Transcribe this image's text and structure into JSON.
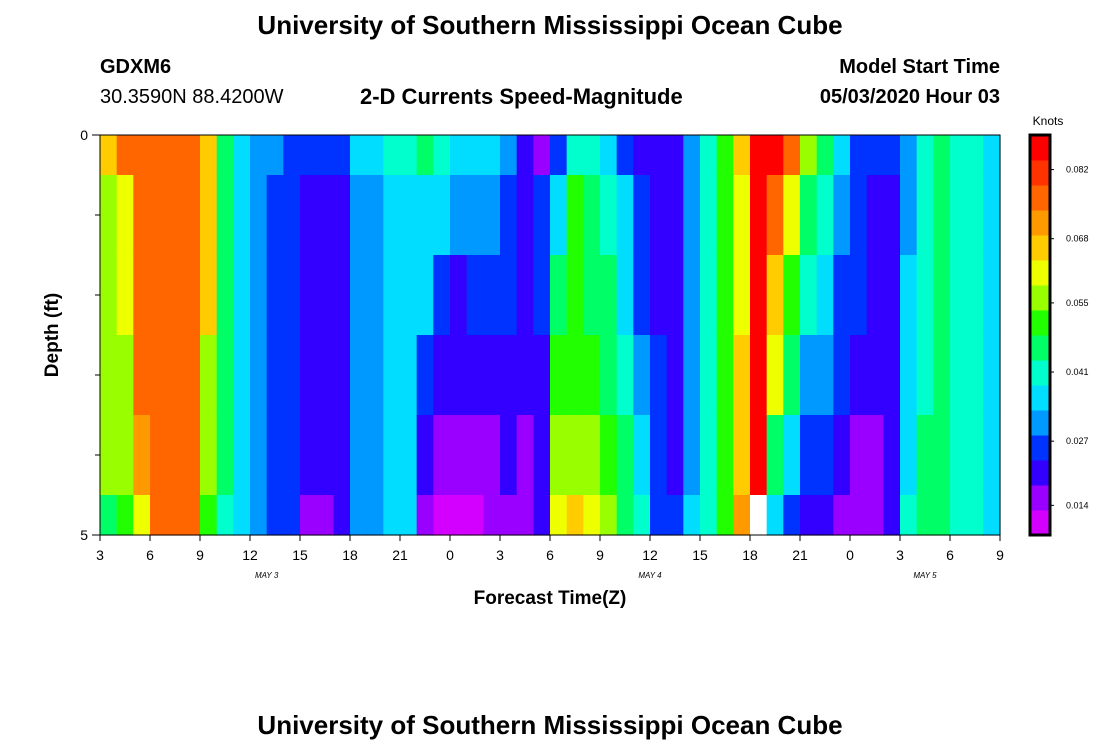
{
  "header": {
    "title": "University of Southern Mississippi Ocean Cube",
    "station_id": "GDXM6",
    "station_coords": "30.3590N 88.4200W",
    "chart_subtitle": "2-D Currents Speed-Magnitude",
    "model_start_label": "Model Start Time",
    "model_start_value": "05/03/2020 Hour 03"
  },
  "footer": {
    "title": "University of Southern Mississippi Ocean Cube"
  },
  "colors": {
    "palette": [
      "#d400ff",
      "#9900ff",
      "#3300ff",
      "#0033ff",
      "#0099ff",
      "#00ddff",
      "#00ffcc",
      "#00ff66",
      "#22ff00",
      "#99ff00",
      "#eeff00",
      "#ffcc00",
      "#ff9900",
      "#ff6600",
      "#ff3300",
      "#ff0000"
    ],
    "missing": "#ffffff"
  },
  "chart_data": {
    "type": "heatmap",
    "title": "2-D Currents Speed-Magnitude",
    "xlabel": "Forecast Time(Z)",
    "ylabel": "Depth (ft)",
    "x_tick_labels": [
      "3",
      "6",
      "9",
      "12",
      "15",
      "18",
      "21",
      "0",
      "3",
      "6",
      "9",
      "12",
      "15",
      "18",
      "21",
      "0",
      "3",
      "6",
      "9"
    ],
    "date_labels": [
      {
        "label": "MAY 3",
        "hour_offset": 10
      },
      {
        "label": "MAY 4",
        "hour_offset": 33
      },
      {
        "label": "MAY 5",
        "hour_offset": 49.5
      }
    ],
    "x_range_hours": [
      0,
      54
    ],
    "y_tick_labels": [
      "0",
      "5"
    ],
    "ylim": [
      0,
      5
    ],
    "colorbar": {
      "unit": "Knots",
      "ticks": [
        0.014,
        0.027,
        0.041,
        0.055,
        0.068,
        0.082
      ],
      "range": [
        0.008,
        0.089
      ]
    },
    "row_boundaries_ft": [
      0,
      0.5,
      1.5,
      2.5,
      3.5,
      4.5,
      5
    ],
    "columns": [
      {
        "hour": 0,
        "v": [
          0.068,
          0.055,
          0.055,
          0.055,
          0.055,
          0.048
        ]
      },
      {
        "hour": 1,
        "v": [
          0.075,
          0.062,
          0.062,
          0.058,
          0.055,
          0.052
        ]
      },
      {
        "hour": 2,
        "v": [
          0.078,
          0.075,
          0.075,
          0.075,
          0.072,
          0.062
        ]
      },
      {
        "hour": 3,
        "v": [
          0.078,
          0.078,
          0.078,
          0.078,
          0.078,
          0.075
        ]
      },
      {
        "hour": 4,
        "v": [
          0.078,
          0.078,
          0.078,
          0.078,
          0.078,
          0.078
        ]
      },
      {
        "hour": 5,
        "v": [
          0.075,
          0.078,
          0.078,
          0.078,
          0.078,
          0.078
        ]
      },
      {
        "hour": 6,
        "v": [
          0.065,
          0.065,
          0.065,
          0.055,
          0.055,
          0.052
        ]
      },
      {
        "hour": 7,
        "v": [
          0.048,
          0.045,
          0.045,
          0.045,
          0.045,
          0.042
        ]
      },
      {
        "hour": 8,
        "v": [
          0.038,
          0.036,
          0.036,
          0.036,
          0.038,
          0.036
        ]
      },
      {
        "hour": 9,
        "v": [
          0.033,
          0.032,
          0.032,
          0.032,
          0.032,
          0.032
        ]
      },
      {
        "hour": 10,
        "v": [
          0.03,
          0.028,
          0.028,
          0.028,
          0.028,
          0.026
        ]
      },
      {
        "hour": 11,
        "v": [
          0.026,
          0.025,
          0.025,
          0.025,
          0.025,
          0.024
        ]
      },
      {
        "hour": 12,
        "v": [
          0.024,
          0.021,
          0.021,
          0.021,
          0.019,
          0.016
        ]
      },
      {
        "hour": 13,
        "v": [
          0.024,
          0.021,
          0.021,
          0.021,
          0.019,
          0.016
        ]
      },
      {
        "hour": 14,
        "v": [
          0.026,
          0.022,
          0.022,
          0.022,
          0.022,
          0.022
        ]
      },
      {
        "hour": 15,
        "v": [
          0.034,
          0.03,
          0.03,
          0.03,
          0.03,
          0.03
        ]
      },
      {
        "hour": 16,
        "v": [
          0.038,
          0.033,
          0.033,
          0.033,
          0.033,
          0.033
        ]
      },
      {
        "hour": 17,
        "v": [
          0.04,
          0.036,
          0.036,
          0.036,
          0.036,
          0.036
        ]
      },
      {
        "hour": 18,
        "v": [
          0.042,
          0.038,
          0.038,
          0.038,
          0.038,
          0.036
        ]
      },
      {
        "hour": 19,
        "v": [
          0.044,
          0.038,
          0.038,
          0.024,
          0.019,
          0.015
        ]
      },
      {
        "hour": 20,
        "v": [
          0.042,
          0.034,
          0.025,
          0.022,
          0.018,
          0.013
        ]
      },
      {
        "hour": 21,
        "v": [
          0.038,
          0.031,
          0.023,
          0.021,
          0.017,
          0.012
        ]
      },
      {
        "hour": 22,
        "v": [
          0.036,
          0.031,
          0.024,
          0.021,
          0.018,
          0.013
        ]
      },
      {
        "hour": 23,
        "v": [
          0.038,
          0.031,
          0.025,
          0.022,
          0.018,
          0.014
        ]
      },
      {
        "hour": 24,
        "v": [
          0.03,
          0.027,
          0.026,
          0.022,
          0.02,
          0.014
        ]
      },
      {
        "hour": 25,
        "v": [
          0.022,
          0.022,
          0.022,
          0.021,
          0.017,
          0.015
        ]
      },
      {
        "hour": 26,
        "v": [
          0.018,
          0.024,
          0.024,
          0.022,
          0.02,
          0.022
        ]
      },
      {
        "hour": 27,
        "v": [
          0.026,
          0.037,
          0.047,
          0.049,
          0.055,
          0.062
        ]
      },
      {
        "hour": 28,
        "v": [
          0.042,
          0.05,
          0.05,
          0.052,
          0.058,
          0.064
        ]
      },
      {
        "hour": 29,
        "v": [
          0.042,
          0.048,
          0.048,
          0.052,
          0.055,
          0.062
        ]
      },
      {
        "hour": 30,
        "v": [
          0.038,
          0.04,
          0.044,
          0.046,
          0.05,
          0.055
        ]
      },
      {
        "hour": 31,
        "v": [
          0.027,
          0.034,
          0.036,
          0.04,
          0.044,
          0.048
        ]
      },
      {
        "hour": 32,
        "v": [
          0.02,
          0.026,
          0.028,
          0.032,
          0.036,
          0.04
        ]
      },
      {
        "hour": 33,
        "v": [
          0.02,
          0.022,
          0.022,
          0.024,
          0.026,
          0.028
        ]
      },
      {
        "hour": 34,
        "v": [
          0.022,
          0.022,
          0.022,
          0.022,
          0.022,
          0.024
        ]
      },
      {
        "hour": 35,
        "v": [
          0.033,
          0.03,
          0.03,
          0.03,
          0.032,
          0.034
        ]
      },
      {
        "hour": 36,
        "v": [
          0.043,
          0.04,
          0.04,
          0.04,
          0.04,
          0.042
        ]
      },
      {
        "hour": 37,
        "v": [
          0.052,
          0.05,
          0.05,
          0.05,
          0.05,
          0.052
        ]
      },
      {
        "hour": 38,
        "v": [
          0.064,
          0.06,
          0.062,
          0.065,
          0.068,
          0.07
        ]
      },
      {
        "hour": 39,
        "v": [
          0.088,
          0.085,
          0.085,
          0.085,
          0.085,
          null
        ]
      },
      {
        "hour": 40,
        "v": [
          0.085,
          0.078,
          0.068,
          0.062,
          0.048,
          0.035
        ]
      },
      {
        "hour": 41,
        "v": [
          0.075,
          0.062,
          0.05,
          0.045,
          0.038,
          0.028
        ]
      },
      {
        "hour": 42,
        "v": [
          0.055,
          0.048,
          0.04,
          0.032,
          0.028,
          0.022
        ]
      },
      {
        "hour": 43,
        "v": [
          0.048,
          0.04,
          0.035,
          0.03,
          0.025,
          0.02
        ]
      },
      {
        "hour": 44,
        "v": [
          0.036,
          0.032,
          0.028,
          0.025,
          0.022,
          0.018
        ]
      },
      {
        "hour": 45,
        "v": [
          0.028,
          0.026,
          0.024,
          0.021,
          0.018,
          0.015
        ]
      },
      {
        "hour": 46,
        "v": [
          0.025,
          0.022,
          0.021,
          0.02,
          0.018,
          0.016
        ]
      },
      {
        "hour": 47,
        "v": [
          0.024,
          0.022,
          0.022,
          0.022,
          0.022,
          0.022
        ]
      },
      {
        "hour": 48,
        "v": [
          0.032,
          0.032,
          0.034,
          0.036,
          0.038,
          0.04
        ]
      },
      {
        "hour": 49,
        "v": [
          0.042,
          0.042,
          0.042,
          0.042,
          0.044,
          0.046
        ]
      },
      {
        "hour": 50,
        "v": [
          0.044,
          0.044,
          0.044,
          0.044,
          0.044,
          0.044
        ]
      },
      {
        "hour": 51,
        "v": [
          0.04,
          0.04,
          0.04,
          0.04,
          0.04,
          0.04
        ]
      },
      {
        "hour": 52,
        "v": [
          0.042,
          0.042,
          0.042,
          0.042,
          0.042,
          0.042
        ]
      },
      {
        "hour": 53,
        "v": [
          0.038,
          0.038,
          0.038,
          0.038,
          0.038,
          0.038
        ]
      }
    ]
  }
}
